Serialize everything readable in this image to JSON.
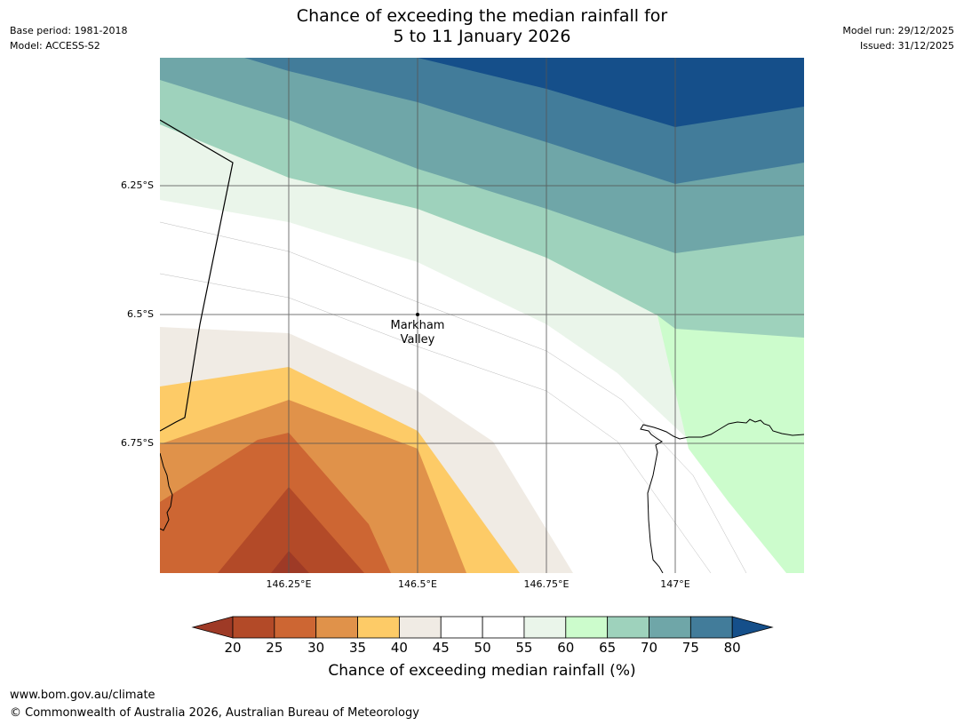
{
  "title": {
    "line1": "Chance of exceeding the median rainfall for",
    "line2": "5 to 11 January 2026"
  },
  "meta": {
    "base_period": "Base period: 1981-2018",
    "model": "Model: ACCESS-S2",
    "model_run": "Model run: 29/12/2025",
    "issued": "Issued: 31/12/2025"
  },
  "map": {
    "lat_labels": [
      "6.25°S",
      "6.5°S",
      "6.75°S"
    ],
    "lon_labels": [
      "146.25°E",
      "146.5°E",
      "146.75°E",
      "147°E"
    ],
    "place": {
      "line1": "Markham",
      "line2": "Valley"
    }
  },
  "colorbar": {
    "ticks": [
      "20",
      "25",
      "30",
      "35",
      "40",
      "45",
      "50",
      "55",
      "60",
      "65",
      "70",
      "75",
      "80"
    ],
    "colors": [
      "#9e3a26",
      "#b34a28",
      "#cd6633",
      "#e0924a",
      "#fdcb67",
      "#f0ebe4",
      "#ffffff",
      "#ffffff",
      "#eaf5ea",
      "#ccfccc",
      "#9ed2bc",
      "#6fa6a8",
      "#427c9a",
      "#154f8a"
    ],
    "label": "Chance of exceeding median rainfall (%)"
  },
  "footer": {
    "url": "www.bom.gov.au/climate",
    "copyright": "© Commonwealth of Australia 2026, Australian Bureau of Meteorology"
  }
}
